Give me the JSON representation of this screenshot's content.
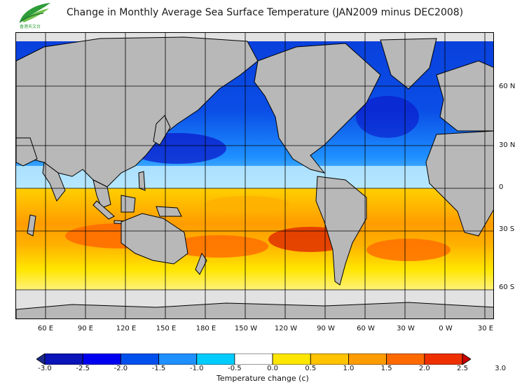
{
  "title": "Change in Monthly Average Sea Surface Temperature (JAN2009 minus DEC2008)",
  "logo": {
    "icon": "leaf-logo-icon",
    "caption": "香港天文台"
  },
  "map": {
    "lat_labels": [
      "60 N",
      "30 N",
      "0",
      "30 S",
      "60 S"
    ],
    "lon_labels": [
      "60 E",
      "90 E",
      "120 E",
      "150 E",
      "180 E",
      "150 W",
      "120 W",
      "90 W",
      "60 W",
      "30 W",
      "0 W",
      "30 E"
    ],
    "colors": {
      "land": "#b8b8b8",
      "ice": "#e2e2e2",
      "coast": "#000000"
    }
  },
  "colorbar": {
    "title": "Temperature change  (c)",
    "ticks": [
      "-3.0",
      "-2.5",
      "-2.0",
      "-1.5",
      "-1.0",
      "-0.5",
      "0.0",
      "0.5",
      "1.0",
      "1.5",
      "2.0",
      "2.5",
      "3.0"
    ],
    "bins": [
      {
        "range": [
          -3.5,
          -3.0
        ],
        "color": "#1a2a8a"
      },
      {
        "range": [
          -3.0,
          -2.5
        ],
        "color": "#0a14b8"
      },
      {
        "range": [
          -2.5,
          -2.0
        ],
        "color": "#0000f0"
      },
      {
        "range": [
          -2.0,
          -1.5
        ],
        "color": "#0050ee"
      },
      {
        "range": [
          -1.5,
          -1.0
        ],
        "color": "#1e90ff"
      },
      {
        "range": [
          -1.0,
          -0.5
        ],
        "color": "#00ccff"
      },
      {
        "range": [
          -0.5,
          0.5
        ],
        "color": "#ffffff"
      },
      {
        "range": [
          0.5,
          1.0
        ],
        "color": "#ffe600"
      },
      {
        "range": [
          1.0,
          1.5
        ],
        "color": "#ffc300"
      },
      {
        "range": [
          1.5,
          2.0
        ],
        "color": "#ff9c00"
      },
      {
        "range": [
          2.0,
          2.5
        ],
        "color": "#ff6a00"
      },
      {
        "range": [
          2.5,
          3.0
        ],
        "color": "#ee3000"
      },
      {
        "range": [
          3.0,
          3.5
        ],
        "color": "#c80000"
      }
    ]
  }
}
